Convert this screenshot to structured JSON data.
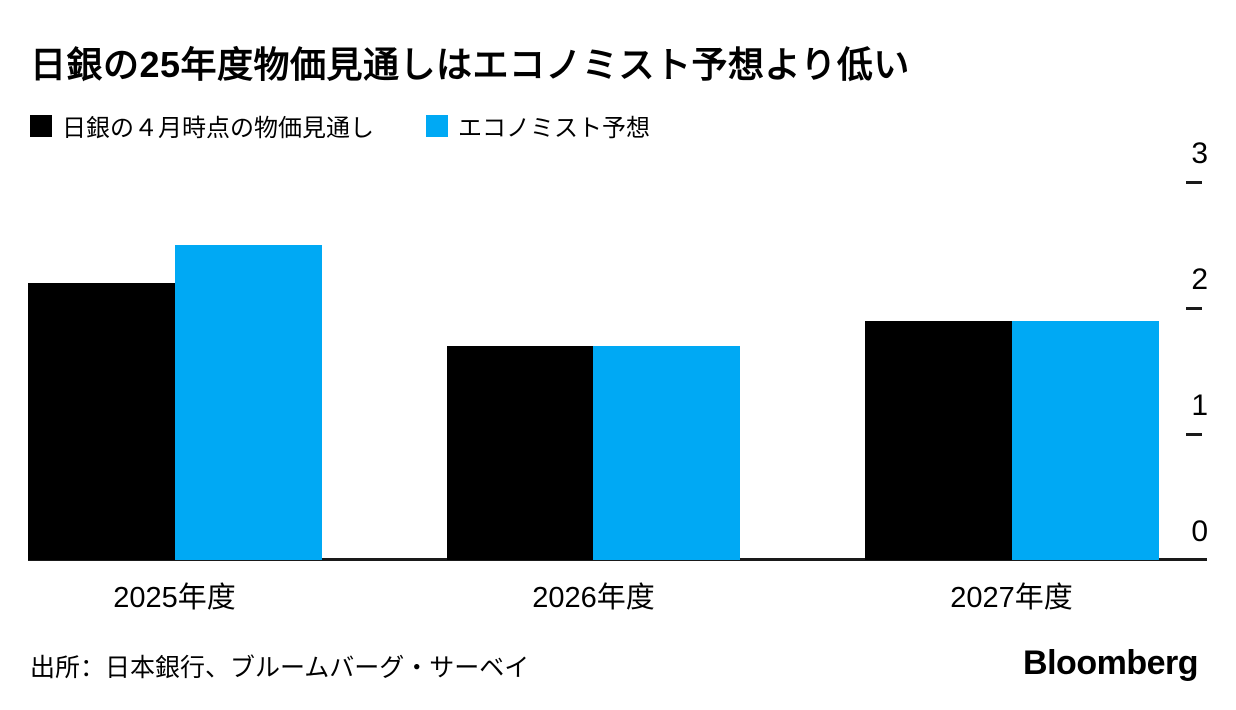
{
  "title": "日銀の25年度物価見通しはエコノミスト予想より低い",
  "legend": [
    {
      "label": "日銀の４月時点の物価見通し",
      "color": "#000000"
    },
    {
      "label": "エコノミスト予想",
      "color": "#00a9f4"
    }
  ],
  "source": "出所：日本銀行、ブルームバーグ・サーベイ",
  "brand": "Bloomberg",
  "colors": {
    "background": "#ffffff",
    "axis": "#1a1a1a",
    "boj_series": "#000000",
    "economist_series": "#00a9f4"
  },
  "chart_data": {
    "type": "bar",
    "title": "日銀の25年度物価見通しはエコノミスト予想より低い",
    "categories": [
      "2025年度",
      "2026年度",
      "2027年度"
    ],
    "series": [
      {
        "name": "日銀の４月時点の物価見通し",
        "key": "boj",
        "color": "#000000",
        "values": [
          2.2,
          1.7,
          1.9
        ]
      },
      {
        "name": "エコノミスト予想",
        "key": "economist",
        "color": "#00a9f4",
        "values": [
          2.5,
          1.7,
          1.9
        ]
      }
    ],
    "xlabel": "",
    "ylabel": "",
    "ylim": [
      0,
      3
    ],
    "yticks": [
      0,
      1,
      2,
      3
    ],
    "yaxis_position": "right",
    "grid": false,
    "legend_position": "top-left"
  }
}
